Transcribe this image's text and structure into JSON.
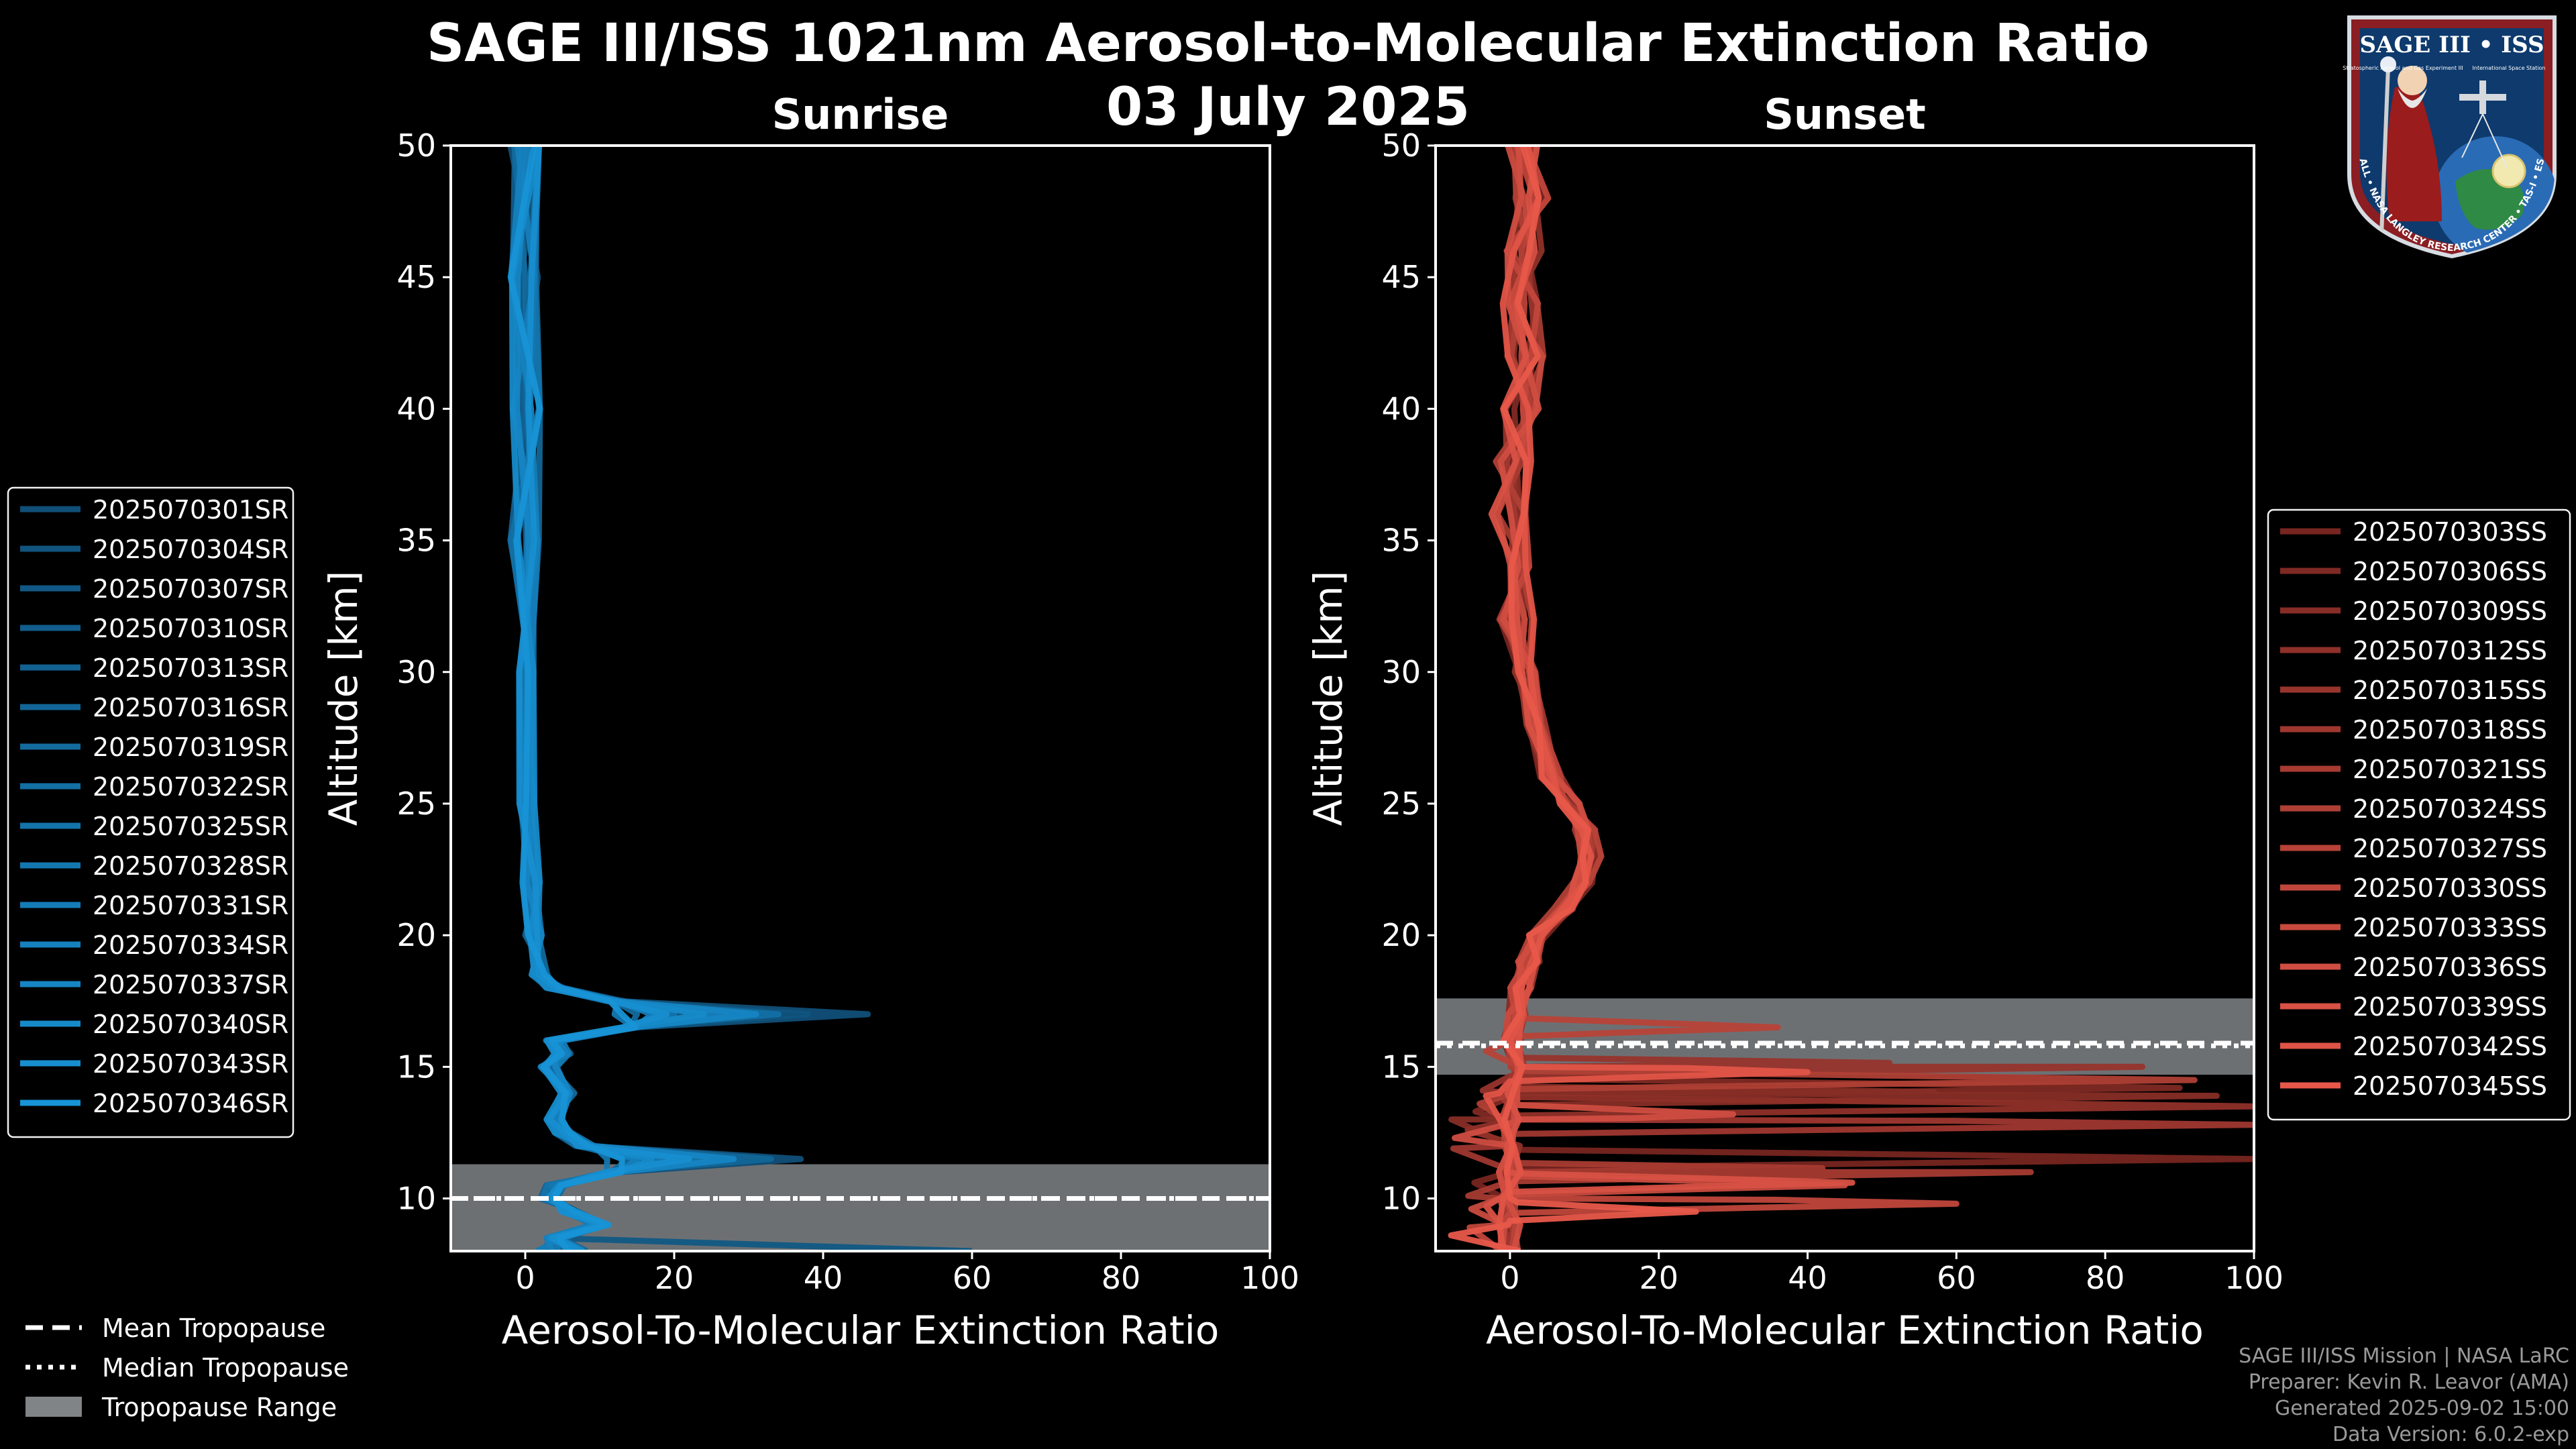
{
  "title": {
    "line1": "SAGE III/ISS 1021nm Aerosol-to-Molecular Extinction Ratio",
    "line2": "03 July 2025"
  },
  "logo": {
    "top_text": "SAGE III • ISS",
    "sub_left": "Stratospheric Aerosol and Gas Experiment III",
    "sub_right": "International Space Station",
    "ring_text": "BALL • NASA LANGLEY RESEARCH CENTER • TAS-I • ESA"
  },
  "credits": {
    "line1": "SAGE III/ISS Mission | NASA LaRC",
    "line2": "Preparer: Kevin R. Leavor (AMA)",
    "line3": "Generated 2025-09-02 15:00",
    "line4": "Data Version: 6.0.2-exp"
  },
  "tropo_legend": {
    "mean": "Mean Tropopause",
    "median": "Median Tropopause",
    "range": "Tropopause Range"
  },
  "colors": {
    "sunrise_base": "#1793d6",
    "sunset_base": "#e8584a",
    "tropo_fill": "#808487"
  },
  "chart_data": [
    {
      "type": "line",
      "panel": "sunrise",
      "title": "Sunrise",
      "xlabel": "Aerosol-To-Molecular Extinction Ratio",
      "ylabel": "Altitude [km]",
      "xlim": [
        -10,
        100
      ],
      "ylim": [
        8,
        50
      ],
      "xticks": [
        0,
        20,
        40,
        60,
        80,
        100
      ],
      "yticks": [
        10,
        15,
        20,
        25,
        30,
        35,
        40,
        45,
        50
      ],
      "legend_position": "left",
      "tropopause": {
        "mean": 10.0,
        "median": 10.0,
        "min": 8.0,
        "max": 11.3
      },
      "profile_labels": [
        "2025070301SR",
        "2025070304SR",
        "2025070307SR",
        "2025070310SR",
        "2025070313SR",
        "2025070316SR",
        "2025070319SR",
        "2025070322SR",
        "2025070325SR",
        "2025070328SR",
        "2025070331SR",
        "2025070334SR",
        "2025070337SR",
        "2025070340SR",
        "2025070343SR",
        "2025070346SR"
      ],
      "base_profile": [
        [
          50,
          0
        ],
        [
          45,
          0
        ],
        [
          40,
          0
        ],
        [
          35,
          0
        ],
        [
          30,
          0
        ],
        [
          25,
          0.3
        ],
        [
          22,
          0.8
        ],
        [
          20,
          1.2
        ],
        [
          18.5,
          2
        ],
        [
          18,
          4
        ],
        [
          17.5,
          12
        ],
        [
          17,
          30
        ],
        [
          16.5,
          14
        ],
        [
          16,
          4
        ],
        [
          15.5,
          5
        ],
        [
          15,
          3
        ],
        [
          14,
          6
        ],
        [
          13,
          4
        ],
        [
          12.5,
          5
        ],
        [
          12,
          8
        ],
        [
          11.5,
          22
        ],
        [
          11,
          12
        ],
        [
          10.5,
          4
        ],
        [
          10,
          3
        ],
        [
          9.5,
          6
        ],
        [
          9,
          10
        ],
        [
          8.5,
          4
        ],
        [
          8,
          2
        ]
      ],
      "peaks": [
        46,
        38,
        22,
        30,
        18,
        26,
        15,
        34,
        20,
        12,
        27,
        17,
        31,
        24,
        19,
        13
      ],
      "low_peaks": [
        37,
        21,
        29,
        16,
        25,
        33,
        14,
        18,
        24,
        11,
        20,
        15,
        28,
        17,
        22,
        13
      ],
      "tail_value": 60
    },
    {
      "type": "line",
      "panel": "sunset",
      "title": "Sunset",
      "xlabel": "Aerosol-To-Molecular Extinction Ratio",
      "ylabel": "Altitude [km]",
      "xlim": [
        -10,
        100
      ],
      "ylim": [
        8,
        50
      ],
      "xticks": [
        0,
        20,
        40,
        60,
        80,
        100
      ],
      "yticks": [
        10,
        15,
        20,
        25,
        30,
        35,
        40,
        45,
        50
      ],
      "legend_position": "right",
      "tropopause": {
        "mean": 15.9,
        "median": 15.8,
        "min": 14.7,
        "max": 17.6
      },
      "profile_labels": [
        "2025070303SS",
        "2025070306SS",
        "2025070309SS",
        "2025070312SS",
        "2025070315SS",
        "2025070318SS",
        "2025070321SS",
        "2025070324SS",
        "2025070327SS",
        "2025070330SS",
        "2025070333SS",
        "2025070336SS",
        "2025070339SS",
        "2025070342SS",
        "2025070345SS"
      ],
      "base_profile": [
        [
          50,
          2
        ],
        [
          48,
          3
        ],
        [
          46,
          2
        ],
        [
          44,
          1.5
        ],
        [
          42,
          2
        ],
        [
          40,
          1.5
        ],
        [
          38,
          0.5
        ],
        [
          36,
          0
        ],
        [
          34,
          0.5
        ],
        [
          32,
          1
        ],
        [
          30,
          2
        ],
        [
          28,
          3.5
        ],
        [
          26,
          5.5
        ],
        [
          25,
          8
        ],
        [
          24,
          10
        ],
        [
          23,
          11
        ],
        [
          22,
          10
        ],
        [
          21,
          7
        ],
        [
          20,
          4
        ],
        [
          19,
          2.5
        ],
        [
          18,
          1.5
        ],
        [
          17,
          1
        ],
        [
          16,
          0.5
        ],
        [
          15,
          0.5
        ],
        [
          14,
          0
        ],
        [
          13,
          0
        ],
        [
          12,
          0
        ],
        [
          11,
          0
        ],
        [
          10,
          0
        ],
        [
          9,
          0
        ],
        [
          8,
          0
        ]
      ],
      "peaks": [
        100,
        90,
        95,
        100,
        85,
        100,
        70,
        92,
        36,
        60,
        45,
        30,
        46,
        40,
        25
      ],
      "peak_altitudes": [
        11.5,
        14.2,
        13.9,
        13.5,
        15.0,
        12.8,
        11.0,
        14.5,
        16.5,
        9.8,
        10.5,
        13.2,
        10.6,
        14.8,
        9.5
      ],
      "tail_value": 5
    }
  ]
}
